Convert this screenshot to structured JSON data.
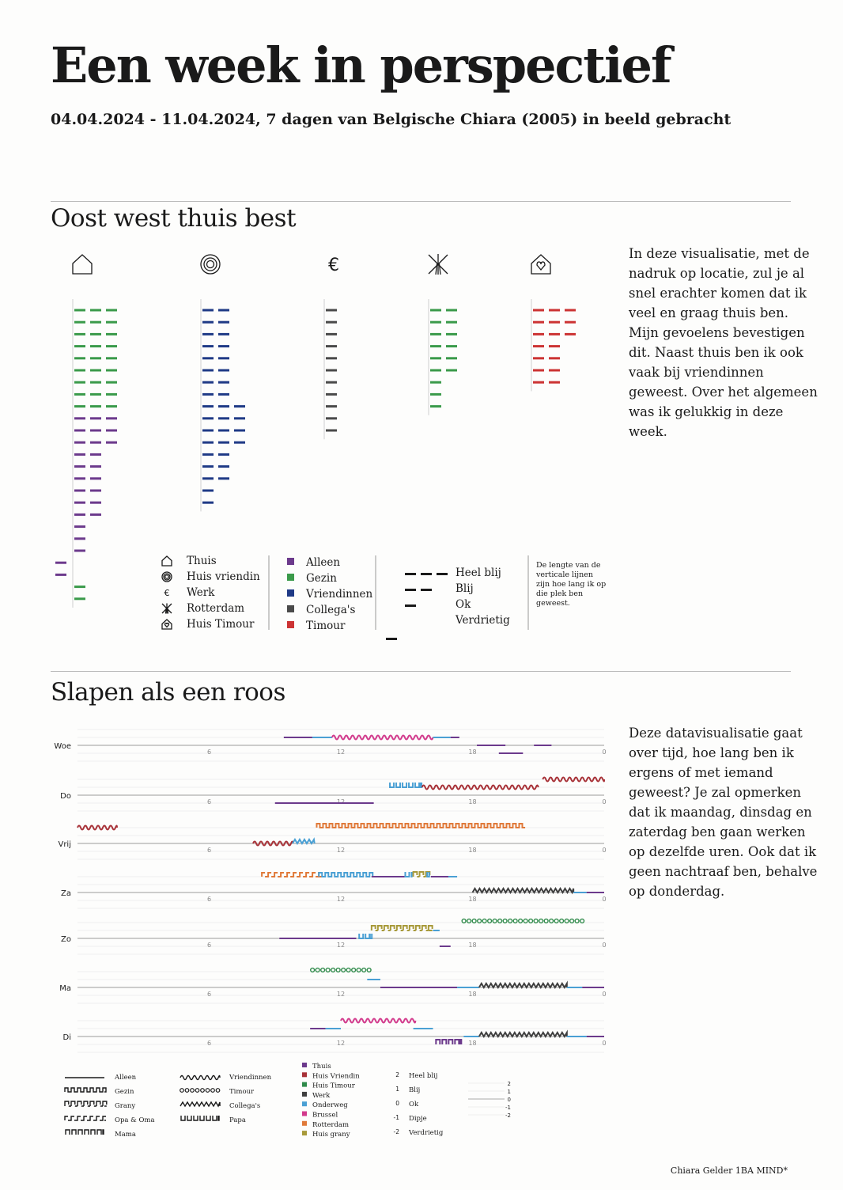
{
  "header": {
    "title": "Een week in perspectief",
    "subtitle": "04.04.2024 - 11.04.2024, 7 dagen van Belgische Chiara (2005) in beeld gebracht"
  },
  "colors": {
    "Alleen": "#6c3a8c",
    "Gezin": "#3a9a4a",
    "Vriendinnen": "#1f3a86",
    "Collega's": "#4a4a4a",
    "Timour": "#cc3333",
    "Huis Vriendin": "#a83238",
    "Werk": "#3f3f3f",
    "Onderweg": "#4aa0d4",
    "Brussel": "#d23a8c",
    "Rotterdam": "#e07a3a",
    "Huis grany": "#a89a3a",
    "Huis Timour": "#2f8a4a",
    "Thuis": "#6c3a8c"
  },
  "section1": {
    "title": "Oost west thuis best",
    "description": "In deze visualisatie, met de nadruk op locatie, zul je al snel erachter komen dat ik veel en graag thuis ben. Mijn gevoelens bevestigen dit. Naast thuis ben ik ook vaak bij vriendinnen geweest. Over het algemeen was ik gelukkig in deze week.",
    "legend_locations": [
      {
        "icon": "house-icon",
        "label": "Thuis"
      },
      {
        "icon": "target-icon",
        "label": "Huis vriendin"
      },
      {
        "icon": "euro-icon",
        "label": "Werk"
      },
      {
        "icon": "windmill-icon",
        "label": "Rotterdam"
      },
      {
        "icon": "house-heart-icon",
        "label": "Huis Timour"
      }
    ],
    "legend_people": [
      "Alleen",
      "Gezin",
      "Vriendinnen",
      "Collega's",
      "Timour"
    ],
    "legend_moods": [
      "Heel blij",
      "Blij",
      "Ok",
      "Verdrietig"
    ],
    "legend_note": "De lengte van de verticale lijnen zijn hoe lang ik op die plek ben geweest."
  },
  "chart_data": [
    {
      "type": "dash-columns",
      "title": "Oost west thuis best",
      "note": "Each row is one time block at a location; dash count = mood (4 Heel blij, 3 Blij, 2 Ok, 1 Verdrietig); colour = company",
      "columns": [
        {
          "location": "Thuis",
          "icon": "house-icon",
          "rows": [
            {
              "with": "Gezin",
              "mood": 3
            },
            {
              "with": "Gezin",
              "mood": 3
            },
            {
              "with": "Gezin",
              "mood": 3
            },
            {
              "with": "Gezin",
              "mood": 3
            },
            {
              "with": "Gezin",
              "mood": 3
            },
            {
              "with": "Gezin",
              "mood": 3
            },
            {
              "with": "Gezin",
              "mood": 3
            },
            {
              "with": "Gezin",
              "mood": 3
            },
            {
              "with": "Gezin",
              "mood": 3
            },
            {
              "with": "Alleen",
              "mood": 3
            },
            {
              "with": "Alleen",
              "mood": 3
            },
            {
              "with": "Alleen",
              "mood": 3
            },
            {
              "with": "Alleen",
              "mood": 2
            },
            {
              "with": "Alleen",
              "mood": 2
            },
            {
              "with": "Alleen",
              "mood": 2
            },
            {
              "with": "Alleen",
              "mood": 2
            },
            {
              "with": "Alleen",
              "mood": 2
            },
            {
              "with": "Alleen",
              "mood": 2
            },
            {
              "with": "Alleen",
              "mood": 1
            },
            {
              "with": "Alleen",
              "mood": 1
            },
            {
              "with": "Alleen",
              "mood": 1
            },
            {
              "with": "Alleen",
              "mood": 0
            },
            {
              "with": "Alleen",
              "mood": 0
            },
            {
              "with": "Gezin",
              "mood": 1
            },
            {
              "with": "Gezin",
              "mood": 1
            }
          ]
        },
        {
          "location": "Huis vriendin",
          "icon": "target-icon",
          "rows": [
            {
              "with": "Vriendinnen",
              "mood": 2
            },
            {
              "with": "Vriendinnen",
              "mood": 2
            },
            {
              "with": "Vriendinnen",
              "mood": 2
            },
            {
              "with": "Vriendinnen",
              "mood": 2
            },
            {
              "with": "Vriendinnen",
              "mood": 2
            },
            {
              "with": "Vriendinnen",
              "mood": 2
            },
            {
              "with": "Vriendinnen",
              "mood": 2
            },
            {
              "with": "Vriendinnen",
              "mood": 2
            },
            {
              "with": "Vriendinnen",
              "mood": 3
            },
            {
              "with": "Vriendinnen",
              "mood": 3
            },
            {
              "with": "Vriendinnen",
              "mood": 3
            },
            {
              "with": "Vriendinnen",
              "mood": 3
            },
            {
              "with": "Vriendinnen",
              "mood": 2
            },
            {
              "with": "Vriendinnen",
              "mood": 2
            },
            {
              "with": "Vriendinnen",
              "mood": 2
            },
            {
              "with": "Vriendinnen",
              "mood": 1
            },
            {
              "with": "Vriendinnen",
              "mood": 1
            }
          ]
        },
        {
          "location": "Werk",
          "icon": "euro-icon",
          "rows": [
            {
              "with": "Collega's",
              "mood": 1
            },
            {
              "with": "Collega's",
              "mood": 1
            },
            {
              "with": "Collega's",
              "mood": 1
            },
            {
              "with": "Collega's",
              "mood": 1
            },
            {
              "with": "Collega's",
              "mood": 1
            },
            {
              "with": "Collega's",
              "mood": 1
            },
            {
              "with": "Collega's",
              "mood": 1
            },
            {
              "with": "Collega's",
              "mood": 1
            },
            {
              "with": "Collega's",
              "mood": 1
            },
            {
              "with": "Collega's",
              "mood": 1
            },
            {
              "with": "Collega's",
              "mood": 1
            }
          ]
        },
        {
          "location": "Rotterdam",
          "icon": "windmill-icon",
          "rows": [
            {
              "with": "Gezin",
              "mood": 2
            },
            {
              "with": "Gezin",
              "mood": 2
            },
            {
              "with": "Gezin",
              "mood": 2
            },
            {
              "with": "Gezin",
              "mood": 2
            },
            {
              "with": "Gezin",
              "mood": 2
            },
            {
              "with": "Gezin",
              "mood": 2
            },
            {
              "with": "Gezin",
              "mood": 1
            },
            {
              "with": "Gezin",
              "mood": 1
            },
            {
              "with": "Gezin",
              "mood": 1
            }
          ]
        },
        {
          "location": "Huis Timour",
          "icon": "house-heart-icon",
          "rows": [
            {
              "with": "Timour",
              "mood": 3
            },
            {
              "with": "Timour",
              "mood": 3
            },
            {
              "with": "Timour",
              "mood": 3
            },
            {
              "with": "Timour",
              "mood": 2
            },
            {
              "with": "Timour",
              "mood": 2
            },
            {
              "with": "Timour",
              "mood": 2
            },
            {
              "with": "Timour",
              "mood": 2
            }
          ]
        }
      ]
    },
    {
      "type": "timeline",
      "title": "Slapen als een roos",
      "x_ticks": [
        "6",
        "12",
        "18",
        "0"
      ],
      "days": [
        "Woe",
        "Do",
        "Vrij",
        "Za",
        "Zo",
        "Ma",
        "Di"
      ],
      "note": "Per day a 24h timeline; colour = location, line pattern = company, vertical offset = mood (2 Heel blij ... -2 Verdrietig)",
      "segments": {
        "Woe": [
          {
            "start": 9.4,
            "end": 10.7,
            "loc": "Thuis",
            "pattern": "Alleen",
            "mood": 1
          },
          {
            "start": 10.7,
            "end": 11.6,
            "loc": "Onderweg",
            "pattern": "Alleen",
            "mood": 1
          },
          {
            "start": 11.6,
            "end": 16.2,
            "loc": "Brussel",
            "pattern": "Vriendinnen",
            "mood": 1
          },
          {
            "start": 16.2,
            "end": 17.0,
            "loc": "Onderweg",
            "pattern": "Alleen",
            "mood": 1
          },
          {
            "start": 17.0,
            "end": 17.4,
            "loc": "Thuis",
            "pattern": "Alleen",
            "mood": 1
          },
          {
            "start": 18.2,
            "end": 19.5,
            "loc": "Thuis",
            "pattern": "Alleen",
            "mood": 0
          },
          {
            "start": 19.2,
            "end": 20.3,
            "loc": "Thuis",
            "pattern": "Alleen",
            "mood": -1
          },
          {
            "start": 20.8,
            "end": 21.6,
            "loc": "Thuis",
            "pattern": "Alleen",
            "mood": 0
          }
        ],
        "Do": [
          {
            "start": 24.0,
            "end": 24.0,
            "loc": "Huis Vriendin",
            "pattern": "Vriendinnen",
            "mood": 2
          },
          {
            "start": 9.0,
            "end": 13.5,
            "loc": "Thuis",
            "pattern": "Alleen",
            "mood": -1
          },
          {
            "start": 14.2,
            "end": 15.7,
            "loc": "Onderweg",
            "pattern": "Papa",
            "mood": 1
          },
          {
            "start": 15.7,
            "end": 21.0,
            "loc": "Huis Vriendin",
            "pattern": "Vriendinnen",
            "mood": 1
          },
          {
            "start": 21.2,
            "end": 24.0,
            "loc": "Huis Vriendin",
            "pattern": "Vriendinnen",
            "mood": 2
          }
        ],
        "Vrij": [
          {
            "start": 0.0,
            "end": 1.8,
            "loc": "Huis Vriendin",
            "pattern": "Vriendinnen",
            "mood": 2
          },
          {
            "start": 8.0,
            "end": 9.8,
            "loc": "Huis Vriendin",
            "pattern": "Vriendinnen",
            "mood": 0
          },
          {
            "start": 9.8,
            "end": 10.8,
            "loc": "Onderweg",
            "pattern": "Collega's",
            "mood": 0
          },
          {
            "start": 10.9,
            "end": 20.4,
            "loc": "Rotterdam",
            "pattern": "Gezin",
            "mood": 2
          }
        ],
        "Za": [
          {
            "start": 8.4,
            "end": 11.0,
            "loc": "Rotterdam",
            "pattern": "Opa & Oma",
            "mood": 2
          },
          {
            "start": 11.0,
            "end": 13.4,
            "loc": "Onderweg",
            "pattern": "Gezin",
            "mood": 2
          },
          {
            "start": 13.4,
            "end": 14.9,
            "loc": "Thuis",
            "pattern": "Alleen",
            "mood": 2
          },
          {
            "start": 14.9,
            "end": 15.3,
            "loc": "Onderweg",
            "pattern": "Papa",
            "mood": 2
          },
          {
            "start": 15.3,
            "end": 15.9,
            "loc": "Huis grany",
            "pattern": "Grany",
            "mood": 2
          },
          {
            "start": 15.9,
            "end": 16.1,
            "loc": "Onderweg",
            "pattern": "Papa",
            "mood": 2
          },
          {
            "start": 16.1,
            "end": 16.9,
            "loc": "Thuis",
            "pattern": "Alleen",
            "mood": 2
          },
          {
            "start": 16.9,
            "end": 17.3,
            "loc": "Onderweg",
            "pattern": "Alleen",
            "mood": 2
          },
          {
            "start": 18.0,
            "end": 22.6,
            "loc": "Werk",
            "pattern": "Collega's",
            "mood": 0
          },
          {
            "start": 22.6,
            "end": 23.2,
            "loc": "Onderweg",
            "pattern": "Alleen",
            "mood": 0
          },
          {
            "start": 23.2,
            "end": 24.0,
            "loc": "Thuis",
            "pattern": "Alleen",
            "mood": 0
          }
        ],
        "Zo": [
          {
            "start": 9.2,
            "end": 12.7,
            "loc": "Thuis",
            "pattern": "Alleen",
            "mood": 0
          },
          {
            "start": 12.8,
            "end": 13.4,
            "loc": "Onderweg",
            "pattern": "Papa",
            "mood": 0
          },
          {
            "start": 13.4,
            "end": 16.0,
            "loc": "Huis grany",
            "pattern": "Grany",
            "mood": 1
          },
          {
            "start": 16.2,
            "end": 16.5,
            "loc": "Onderweg",
            "pattern": "Alleen",
            "mood": 1
          },
          {
            "start": 16.5,
            "end": 17.0,
            "loc": "Thuis",
            "pattern": "Alleen",
            "mood": -1
          },
          {
            "start": 17.5,
            "end": 23.0,
            "loc": "Huis Timour",
            "pattern": "Timour",
            "mood": 2
          }
        ],
        "Ma": [
          {
            "start": 10.6,
            "end": 13.5,
            "loc": "Huis Timour",
            "pattern": "Timour",
            "mood": 2
          },
          {
            "start": 13.2,
            "end": 13.8,
            "loc": "Onderweg",
            "pattern": "Alleen",
            "mood": 1
          },
          {
            "start": 13.8,
            "end": 17.3,
            "loc": "Thuis",
            "pattern": "Alleen",
            "mood": 0
          },
          {
            "start": 17.3,
            "end": 18.3,
            "loc": "Onderweg",
            "pattern": "Alleen",
            "mood": 0
          },
          {
            "start": 18.3,
            "end": 22.3,
            "loc": "Werk",
            "pattern": "Collega's",
            "mood": 0
          },
          {
            "start": 22.3,
            "end": 23.0,
            "loc": "Onderweg",
            "pattern": "Alleen",
            "mood": 0
          },
          {
            "start": 23.0,
            "end": 24.0,
            "loc": "Thuis",
            "pattern": "Alleen",
            "mood": 0
          }
        ],
        "Di": [
          {
            "start": 10.6,
            "end": 11.3,
            "loc": "Thuis",
            "pattern": "Alleen",
            "mood": 1
          },
          {
            "start": 11.3,
            "end": 12.0,
            "loc": "Onderweg",
            "pattern": "Alleen",
            "mood": 1
          },
          {
            "start": 12.0,
            "end": 15.4,
            "loc": "Brussel",
            "pattern": "Vriendinnen",
            "mood": 2
          },
          {
            "start": 15.3,
            "end": 16.2,
            "loc": "Onderweg",
            "pattern": "Alleen",
            "mood": 1
          },
          {
            "start": 16.3,
            "end": 17.5,
            "loc": "Thuis",
            "pattern": "Mama",
            "mood": -1
          },
          {
            "start": 17.6,
            "end": 18.3,
            "loc": "Onderweg",
            "pattern": "Alleen",
            "mood": 0
          },
          {
            "start": 18.3,
            "end": 22.3,
            "loc": "Werk",
            "pattern": "Collega's",
            "mood": 0
          },
          {
            "start": 22.3,
            "end": 23.2,
            "loc": "Onderweg",
            "pattern": "Alleen",
            "mood": 0
          },
          {
            "start": 23.2,
            "end": 24.0,
            "loc": "Thuis",
            "pattern": "Alleen",
            "mood": 0
          }
        ]
      }
    }
  ],
  "section2": {
    "title": "Slapen als een roos",
    "description": "Deze datavisualisatie gaat over tijd, hoe lang ben ik ergens of met iemand geweest? Je zal opmerken dat ik maandag, dinsdag en zaterdag ben gaan werken op dezelfde uren. Ook dat ik geen nachtraaf ben, behalve op donderdag.",
    "legend_patterns_a": [
      "Alleen",
      "Gezin",
      "Grany",
      "Opa & Oma",
      "Mama"
    ],
    "legend_patterns_b": [
      "Vriendinnen",
      "Timour",
      "Collega's",
      "Papa"
    ],
    "legend_locations": [
      "Thuis",
      "Huis Vriendin",
      "Huis Timour",
      "Werk",
      "Onderweg",
      "Brussel",
      "Rotterdam",
      "Huis grany"
    ],
    "legend_moods": [
      {
        "value": "2",
        "label": "Heel blij"
      },
      {
        "value": "1",
        "label": "Blij"
      },
      {
        "value": "0",
        "label": "Ok"
      },
      {
        "value": "-1",
        "label": "Dipje"
      },
      {
        "value": "-2",
        "label": "Verdrietig"
      }
    ],
    "legend_scale": [
      "2",
      "1",
      "0",
      "-1",
      "-2"
    ]
  },
  "footer": {
    "credit": "Chiara Gelder 1BA MIND*"
  }
}
